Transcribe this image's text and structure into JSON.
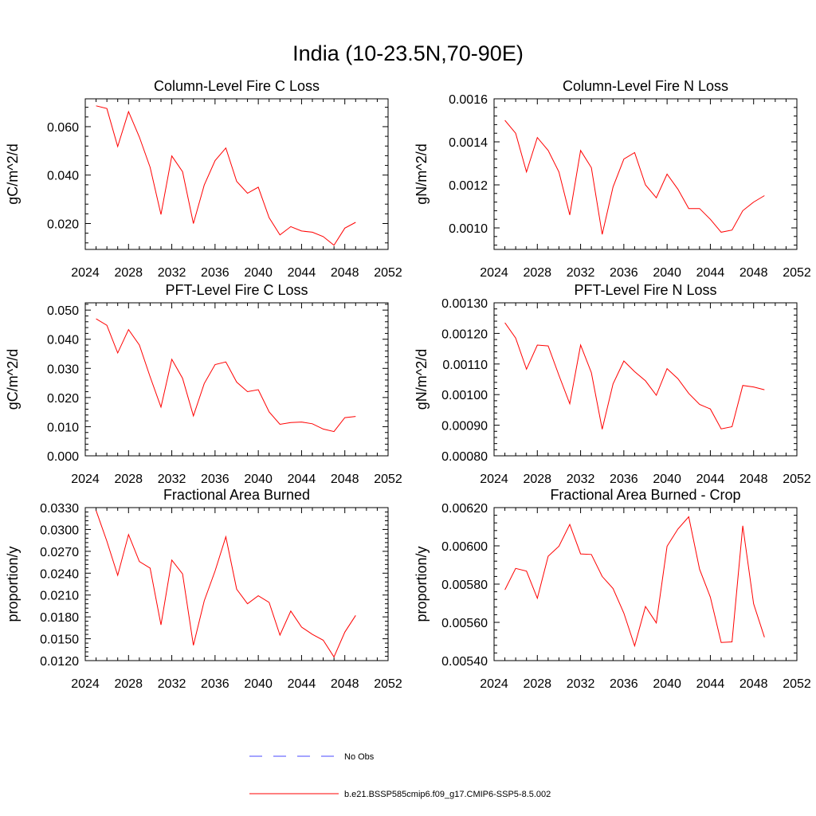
{
  "figure": {
    "title": "India (10-23.5N,70-90E)"
  },
  "legend": {
    "obs_label": "No Obs",
    "model_label": "b.e21.BSSP585cmip6.f09_g17.CMIP6-SSP5-8.5.002",
    "obs_color": "#4a4aff",
    "model_color": "#ff0000"
  },
  "chart_data": [
    {
      "type": "line",
      "title": "Column-Level Fire C Loss",
      "ylabel": "gC/m^2/d",
      "xlim": [
        2024,
        2052
      ],
      "ylim": [
        0.0093,
        0.0715
      ],
      "xticks": [
        2024,
        2028,
        2032,
        2036,
        2040,
        2044,
        2048,
        2052
      ],
      "xtick_labels": [
        "2024",
        "2028",
        "2032",
        "2036",
        "2040",
        "2044",
        "2048",
        "2052"
      ],
      "yticks": [
        0.02,
        0.04,
        0.06
      ],
      "ytick_labels": [
        "0.020",
        "0.040",
        "0.060"
      ],
      "series": [
        {
          "x": [
            2025,
            2026,
            2027,
            2028,
            2029,
            2030,
            2031,
            2032,
            2033,
            2034,
            2035,
            2036,
            2037,
            2038,
            2039,
            2040,
            2041,
            2042,
            2043,
            2044,
            2045,
            2046,
            2047,
            2048,
            2049
          ],
          "values": [
            0.0686,
            0.0675,
            0.0518,
            0.0662,
            0.0557,
            0.0432,
            0.0237,
            0.0479,
            0.0414,
            0.02,
            0.0359,
            0.046,
            0.0512,
            0.0374,
            0.0325,
            0.035,
            0.0224,
            0.0153,
            0.0187,
            0.0169,
            0.0164,
            0.0146,
            0.011,
            0.0181,
            0.0205
          ]
        }
      ]
    },
    {
      "type": "line",
      "title": "Column-Level Fire N Loss",
      "ylabel": "gN/m^2/d",
      "xlim": [
        2024,
        2052
      ],
      "ylim": [
        0.0009,
        0.0016
      ],
      "xticks": [
        2024,
        2028,
        2032,
        2036,
        2040,
        2044,
        2048,
        2052
      ],
      "xtick_labels": [
        "2024",
        "2028",
        "2032",
        "2036",
        "2040",
        "2044",
        "2048",
        "2052"
      ],
      "yticks": [
        0.001,
        0.0012,
        0.0014,
        0.0016
      ],
      "ytick_labels": [
        "0.0010",
        "0.0012",
        "0.0014",
        "0.0016"
      ],
      "series": [
        {
          "x": [
            2025,
            2026,
            2027,
            2028,
            2029,
            2030,
            2031,
            2032,
            2033,
            2034,
            2035,
            2036,
            2037,
            2038,
            2039,
            2040,
            2041,
            2042,
            2043,
            2044,
            2045,
            2046,
            2047,
            2048,
            2049
          ],
          "values": [
            0.0015,
            0.00144,
            0.00126,
            0.00142,
            0.00136,
            0.00126,
            0.00106,
            0.00136,
            0.00128,
            0.00097,
            0.00119,
            0.00132,
            0.00135,
            0.0012,
            0.00114,
            0.00125,
            0.00118,
            0.00109,
            0.00109,
            0.00104,
            0.00098,
            0.00099,
            0.00108,
            0.00112,
            0.00115
          ]
        }
      ]
    },
    {
      "type": "line",
      "title": "PFT-Level Fire C Loss",
      "ylabel": "gC/m^2/d",
      "xlim": [
        2024,
        2052
      ],
      "ylim": [
        0.0,
        0.0525
      ],
      "xticks": [
        2024,
        2028,
        2032,
        2036,
        2040,
        2044,
        2048,
        2052
      ],
      "xtick_labels": [
        "2024",
        "2028",
        "2032",
        "2036",
        "2040",
        "2044",
        "2048",
        "2052"
      ],
      "yticks": [
        0.0,
        0.01,
        0.02,
        0.03,
        0.04,
        0.05
      ],
      "ytick_labels": [
        "0.000",
        "0.010",
        "0.020",
        "0.030",
        "0.040",
        "0.050"
      ],
      "series": [
        {
          "x": [
            2025,
            2026,
            2027,
            2028,
            2029,
            2030,
            2031,
            2032,
            2033,
            2034,
            2035,
            2036,
            2037,
            2038,
            2039,
            2040,
            2041,
            2042,
            2043,
            2044,
            2045,
            2046,
            2047,
            2048,
            2049
          ],
          "values": [
            0.047,
            0.0448,
            0.0353,
            0.0433,
            0.038,
            0.0271,
            0.0167,
            0.0331,
            0.0266,
            0.0137,
            0.0248,
            0.0313,
            0.0322,
            0.0253,
            0.022,
            0.0227,
            0.0151,
            0.0108,
            0.0114,
            0.0116,
            0.011,
            0.0092,
            0.0083,
            0.0131,
            0.0135
          ]
        }
      ]
    },
    {
      "type": "line",
      "title": "PFT-Level Fire N Loss",
      "ylabel": "gN/m^2/d",
      "xlim": [
        2024,
        2052
      ],
      "ylim": [
        0.0008,
        0.0013
      ],
      "xticks": [
        2024,
        2028,
        2032,
        2036,
        2040,
        2044,
        2048,
        2052
      ],
      "xtick_labels": [
        "2024",
        "2028",
        "2032",
        "2036",
        "2040",
        "2044",
        "2048",
        "2052"
      ],
      "yticks": [
        0.0008,
        0.0009,
        0.001,
        0.0011,
        0.0012,
        0.0013
      ],
      "ytick_labels": [
        "0.00080",
        "0.00090",
        "0.00100",
        "0.00110",
        "0.00120",
        "0.00130"
      ],
      "series": [
        {
          "x": [
            2025,
            2026,
            2027,
            2028,
            2029,
            2030,
            2031,
            2032,
            2033,
            2034,
            2035,
            2036,
            2037,
            2038,
            2039,
            2040,
            2041,
            2042,
            2043,
            2044,
            2045,
            2046,
            2047,
            2048,
            2049
          ],
          "values": [
            0.001235,
            0.001185,
            0.001083,
            0.001162,
            0.001159,
            0.001063,
            0.00097,
            0.001162,
            0.001072,
            0.000887,
            0.001035,
            0.00111,
            0.001075,
            0.001045,
            0.000998,
            0.001085,
            0.001052,
            0.001004,
            0.000968,
            0.000953,
            0.000888,
            0.000895,
            0.00103,
            0.001025,
            0.001016
          ]
        }
      ]
    },
    {
      "type": "line",
      "title": "Fractional Area Burned",
      "ylabel": "proportion/y",
      "xlim": [
        2024,
        2052
      ],
      "ylim": [
        0.012,
        0.033
      ],
      "xticks": [
        2024,
        2028,
        2032,
        2036,
        2040,
        2044,
        2048,
        2052
      ],
      "xtick_labels": [
        "2024",
        "2028",
        "2032",
        "2036",
        "2040",
        "2044",
        "2048",
        "2052"
      ],
      "yticks": [
        0.012,
        0.015,
        0.018,
        0.021,
        0.024,
        0.027,
        0.03,
        0.033
      ],
      "ytick_labels": [
        "0.0120",
        "0.0150",
        "0.0180",
        "0.0210",
        "0.0240",
        "0.0270",
        "0.0300",
        "0.0330"
      ],
      "series": [
        {
          "x": [
            2025,
            2026,
            2027,
            2028,
            2029,
            2030,
            2031,
            2032,
            2033,
            2034,
            2035,
            2036,
            2037,
            2038,
            2039,
            2040,
            2041,
            2042,
            2043,
            2044,
            2045,
            2046,
            2047,
            2048,
            2049
          ],
          "values": [
            0.0326,
            0.0284,
            0.0237,
            0.0293,
            0.0256,
            0.0247,
            0.0169,
            0.0258,
            0.0239,
            0.0141,
            0.0202,
            0.0243,
            0.029,
            0.0218,
            0.0198,
            0.0209,
            0.02,
            0.0155,
            0.0188,
            0.0166,
            0.0156,
            0.0148,
            0.0125,
            0.0159,
            0.0182
          ]
        }
      ]
    },
    {
      "type": "line",
      "title": "Fractional Area Burned - Crop",
      "ylabel": "proportion/y",
      "xlim": [
        2024,
        2052
      ],
      "ylim": [
        0.0054,
        0.0062
      ],
      "xticks": [
        2024,
        2028,
        2032,
        2036,
        2040,
        2044,
        2048,
        2052
      ],
      "xtick_labels": [
        "2024",
        "2028",
        "2032",
        "2036",
        "2040",
        "2044",
        "2048",
        "2052"
      ],
      "yticks": [
        0.0054,
        0.0056,
        0.0058,
        0.006,
        0.0062
      ],
      "ytick_labels": [
        "0.00540",
        "0.00560",
        "0.00580",
        "0.00600",
        "0.00620"
      ],
      "series": [
        {
          "x": [
            2025,
            2026,
            2027,
            2028,
            2029,
            2030,
            2031,
            2032,
            2033,
            2034,
            2035,
            2036,
            2037,
            2038,
            2039,
            2040,
            2041,
            2042,
            2043,
            2044,
            2045,
            2046,
            2047,
            2048,
            2049
          ],
          "values": [
            0.00577,
            0.005882,
            0.005868,
            0.005726,
            0.005946,
            0.005998,
            0.006112,
            0.005958,
            0.005955,
            0.00584,
            0.005777,
            0.005648,
            0.005477,
            0.005683,
            0.005597,
            0.005998,
            0.006088,
            0.006152,
            0.005878,
            0.005732,
            0.005495,
            0.005498,
            0.006105,
            0.005697,
            0.005522
          ]
        }
      ]
    }
  ]
}
